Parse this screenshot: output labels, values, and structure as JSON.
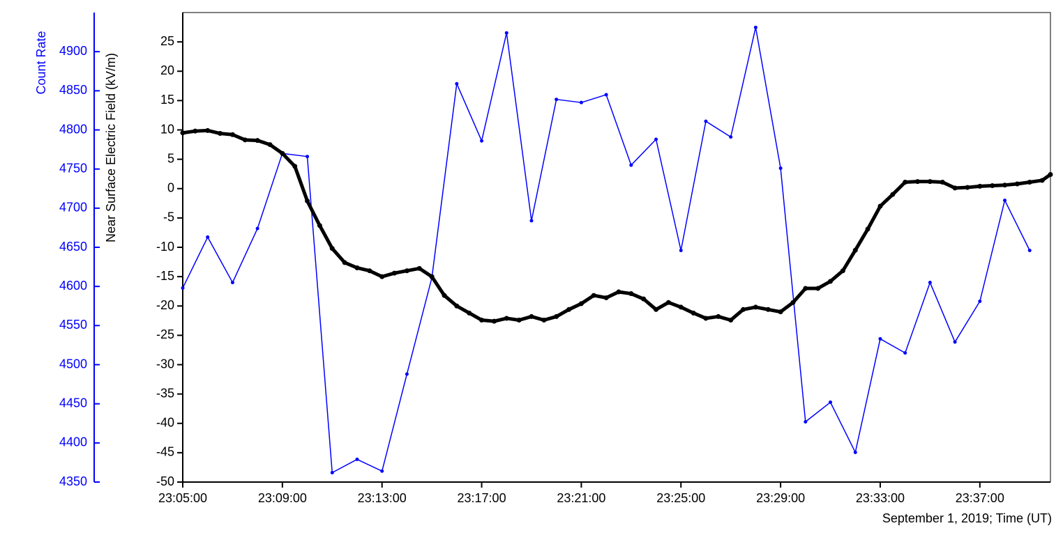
{
  "chart_data": {
    "type": "line",
    "x_label": "September 1, 2019; Time (UT)",
    "y_label": "Near Surface Electric Field (kV/m)",
    "y2_label": "Count Rate",
    "xlim": [
      "23:05:00",
      "23:39:50"
    ],
    "xticks": [
      "23:05:00",
      "23:09:00",
      "23:13:00",
      "23:17:00",
      "23:21:00",
      "23:25:00",
      "23:29:00",
      "23:33:00",
      "23:37:00"
    ],
    "ylim": [
      -50,
      30
    ],
    "yticks": [
      -50,
      -45,
      -40,
      -35,
      -30,
      -25,
      -20,
      -15,
      -10,
      -5,
      0,
      5,
      10,
      15,
      20,
      25
    ],
    "y2lim": [
      4350,
      4950
    ],
    "y2ticks": [
      4350,
      4400,
      4450,
      4500,
      4550,
      4600,
      4650,
      4700,
      4750,
      4800,
      4850,
      4900
    ],
    "y2_color": "#0000ff",
    "series": [
      {
        "color": "#0000ff",
        "axis": "y2",
        "x": [
          "23:05:00",
          "23:06:00",
          "23:07:00",
          "23:08:00",
          "23:09:00",
          "23:10:00",
          "23:11:00",
          "23:12:00",
          "23:13:00",
          "23:14:00",
          "23:15:00",
          "23:16:00",
          "23:17:00",
          "23:18:00",
          "23:19:00",
          "23:20:00",
          "23:21:00",
          "23:22:00",
          "23:23:00",
          "23:24:00",
          "23:25:00",
          "23:26:00",
          "23:27:00",
          "23:28:00",
          "23:29:00",
          "23:30:00",
          "23:31:00",
          "23:32:00",
          "23:33:00",
          "23:34:00",
          "23:35:00",
          "23:36:00",
          "23:37:00",
          "23:38:00",
          "23:39:00"
        ],
        "values": [
          4598,
          4663,
          4605,
          4674,
          4770,
          4766,
          4362,
          4379,
          4364,
          4488,
          4611,
          4859,
          4786,
          4924,
          4684,
          4839,
          4835,
          4845,
          4755,
          4788,
          4646,
          4811,
          4791,
          4931,
          4751,
          4427,
          4452,
          4388,
          4533,
          4515,
          4605,
          4529,
          4581,
          4710,
          4646
        ]
      },
      {
        "color": "#000000",
        "axis": "y",
        "x": [
          "23:05:00",
          "23:05:30",
          "23:06:00",
          "23:06:30",
          "23:07:00",
          "23:07:30",
          "23:08:00",
          "23:08:30",
          "23:09:00",
          "23:09:30",
          "23:10:00",
          "23:10:30",
          "23:11:00",
          "23:11:30",
          "23:12:00",
          "23:12:30",
          "23:13:00",
          "23:13:30",
          "23:14:00",
          "23:14:30",
          "23:15:00",
          "23:15:30",
          "23:16:00",
          "23:16:30",
          "23:17:00",
          "23:17:30",
          "23:18:00",
          "23:18:30",
          "23:19:00",
          "23:19:30",
          "23:20:00",
          "23:20:30",
          "23:21:00",
          "23:21:30",
          "23:22:00",
          "23:22:30",
          "23:23:00",
          "23:23:30",
          "23:24:00",
          "23:24:30",
          "23:25:00",
          "23:25:30",
          "23:26:00",
          "23:26:30",
          "23:27:00",
          "23:27:30",
          "23:28:00",
          "23:28:30",
          "23:29:00",
          "23:29:30",
          "23:30:00",
          "23:30:30",
          "23:31:00",
          "23:31:30",
          "23:32:00",
          "23:32:30",
          "23:33:00",
          "23:33:30",
          "23:34:00",
          "23:34:30",
          "23:35:00",
          "23:35:30",
          "23:36:00",
          "23:36:30",
          "23:37:00",
          "23:37:30",
          "23:38:00",
          "23:38:30",
          "23:39:00",
          "23:39:30",
          "23:39:50"
        ],
        "values": [
          9.5,
          9.8,
          9.9,
          9.4,
          9.2,
          8.3,
          8.2,
          7.5,
          6.0,
          3.8,
          -2.1,
          -6.3,
          -10.2,
          -12.6,
          -13.5,
          -14.0,
          -15.0,
          -14.4,
          -14.0,
          -13.6,
          -15.0,
          -18.2,
          -20.0,
          -21.2,
          -22.4,
          -22.6,
          -22.1,
          -22.4,
          -21.8,
          -22.4,
          -21.8,
          -20.6,
          -19.6,
          -18.2,
          -18.6,
          -17.6,
          -17.9,
          -18.8,
          -20.6,
          -19.4,
          -20.2,
          -21.2,
          -22.1,
          -21.8,
          -22.4,
          -20.6,
          -20.2,
          -20.6,
          -21.0,
          -19.4,
          -17.0,
          -17.0,
          -15.8,
          -14.0,
          -10.5,
          -6.9,
          -3.0,
          -1.0,
          1.1,
          1.2,
          1.2,
          1.1,
          0.1,
          0.2,
          0.4,
          0.5,
          0.6,
          0.8,
          1.1,
          1.4,
          2.4
        ]
      }
    ]
  }
}
